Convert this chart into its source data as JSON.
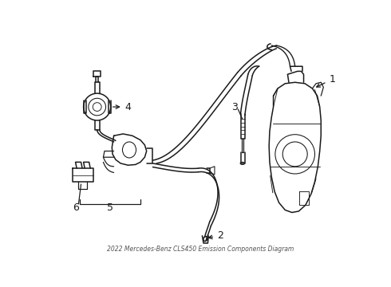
{
  "title": "2022 Mercedes-Benz CLS450 Emission Components Diagram",
  "background_color": "#ffffff",
  "line_color": "#1a1a1a",
  "line_width": 1.1,
  "label_fontsize": 9,
  "figsize": [
    4.9,
    3.6
  ],
  "dpi": 100
}
